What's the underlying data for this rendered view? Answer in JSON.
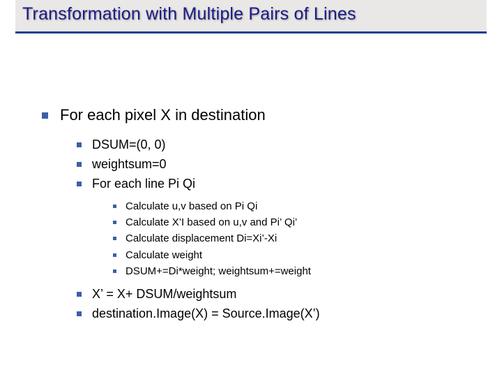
{
  "slide": {
    "title": "Transformation with Multiple Pairs of Lines",
    "title_color": "#1a1a88",
    "title_bg": "#e9e8e6",
    "title_accent": "#153e90",
    "bullet_color": "#3a5fa8",
    "background": "#ffffff",
    "title_fontsize": 25,
    "lvl1_fontsize": 22,
    "lvl2_fontsize": 18,
    "lvl3_fontsize": 15
  },
  "items": {
    "l1_0": "For each pixel X in destination",
    "l2_0": "DSUM=(0, 0)",
    "l2_1": "weightsum=0",
    "l2_2": "For each line Pi Qi",
    "l3_0": "Calculate u,v based on Pi Qi",
    "l3_1": "Calculate X’I based on u,v and Pi’ Qi’",
    "l3_2": "Calculate displacement Di=Xi’-Xi",
    "l3_3": "Calculate weight",
    "l3_4": "DSUM+=Di*weight; weightsum+=weight",
    "l2_3": "X’ = X+ DSUM/weightsum",
    "l2_4": "destination.Image(X) = Source.Image(X’)"
  }
}
